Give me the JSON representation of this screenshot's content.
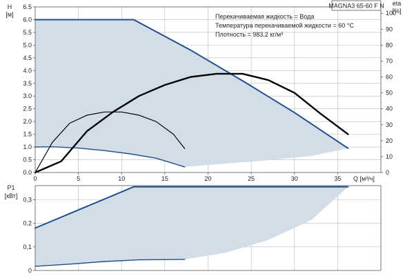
{
  "chart_data": [
    {
      "type": "line",
      "badge": "MAGNA3 65-60 F N",
      "notes": [
        "Перекачиваемая жидкость = Вода",
        "Температура перекачиваемой жидкости = 60 °C",
        "Плотность = 983.2 кг/м³"
      ],
      "ylabel": [
        "H",
        "[м]"
      ],
      "y2label": [
        "eta",
        "[%]"
      ],
      "xlabel": "Q [м³/ч]",
      "xlim": [
        0,
        40
      ],
      "ylim": [
        0,
        6.5
      ],
      "y2lim": [
        0,
        100
      ],
      "xticks": [
        0,
        5,
        10,
        15,
        20,
        25,
        30,
        35
      ],
      "yticks": [
        0.0,
        0.5,
        1.0,
        1.5,
        2.0,
        2.5,
        3.0,
        3.5,
        4.0,
        4.5,
        5.0,
        5.5,
        6.0,
        6.5
      ],
      "ytick_labels": [
        "0.0",
        "0.5",
        "1.0",
        "1.5",
        "2.0",
        "2.5",
        "3.0",
        "3.5",
        "4.0",
        "4.5",
        "5.0",
        "5.5",
        "6.0",
        "6.5"
      ],
      "y2ticks": [
        0,
        10,
        20,
        30,
        40,
        50,
        60,
        70,
        80,
        90,
        100
      ],
      "grid": true,
      "colors": {
        "curve": "#1f4e8c",
        "area": "#d3dde7",
        "eta": "#000000"
      },
      "series": [
        {
          "values": [
            [
              0,
              6.0
            ],
            [
              11.4,
              6.0
            ],
            [
              18,
              4.8
            ],
            [
              24,
              3.6
            ],
            [
              30,
              2.35
            ],
            [
              36.2,
              0.95
            ]
          ]
        },
        {
          "values": [
            [
              0,
              1.0
            ],
            [
              2,
              1.01
            ],
            [
              5,
              0.96
            ],
            [
              8,
              0.86
            ],
            [
              11,
              0.73
            ],
            [
              14,
              0.56
            ],
            [
              17.3,
              0.22
            ]
          ]
        },
        {
          "values": [
            [
              0,
              0
            ],
            [
              3,
              7
            ],
            [
              6,
              26
            ],
            [
              9,
              38
            ],
            [
              12,
              48
            ],
            [
              15,
              55
            ],
            [
              18,
              60
            ],
            [
              21,
              62
            ],
            [
              24,
              62
            ],
            [
              27,
              58
            ],
            [
              30,
              50
            ],
            [
              33,
              37
            ],
            [
              36.2,
              24
            ]
          ],
          "axis": "right"
        },
        {
          "values": [
            [
              0,
              0
            ],
            [
              2,
              19
            ],
            [
              4,
              31
            ],
            [
              6,
              36
            ],
            [
              8,
              38
            ],
            [
              10,
              38
            ],
            [
              12,
              36
            ],
            [
              14,
              32
            ],
            [
              16,
              24
            ],
            [
              17.3,
              15
            ]
          ],
          "axis": "right"
        }
      ],
      "area_lower_boundary": [
        [
          17.3,
          0.22
        ],
        [
          22,
          0.35
        ],
        [
          27,
          0.48
        ],
        [
          32,
          0.65
        ],
        [
          36.2,
          0.95
        ]
      ]
    },
    {
      "type": "line",
      "ylabel": [
        "P1",
        "[кВт]"
      ],
      "xlim": [
        0,
        40
      ],
      "ylim": [
        0,
        0.36
      ],
      "yticks": [
        0,
        0.1,
        0.2,
        0.3
      ],
      "ytick_labels": [
        "0",
        "0,1",
        "0,2",
        "0,3"
      ],
      "grid": true,
      "colors": {
        "curve": "#1f4e8c",
        "area": "#d3dde7"
      },
      "series": [
        {
          "values": [
            [
              0,
              0.18
            ],
            [
              11.4,
              0.355
            ],
            [
              36.2,
              0.355
            ]
          ]
        },
        {
          "values": [
            [
              0,
              0.018
            ],
            [
              4,
              0.027
            ],
            [
              8,
              0.038
            ],
            [
              12,
              0.045
            ],
            [
              17.3,
              0.047
            ]
          ]
        }
      ],
      "area_lower_boundary": [
        [
          17.3,
          0.047
        ],
        [
          22,
          0.075
        ],
        [
          27,
          0.13
        ],
        [
          32,
          0.215
        ],
        [
          36.2,
          0.355
        ]
      ]
    }
  ]
}
